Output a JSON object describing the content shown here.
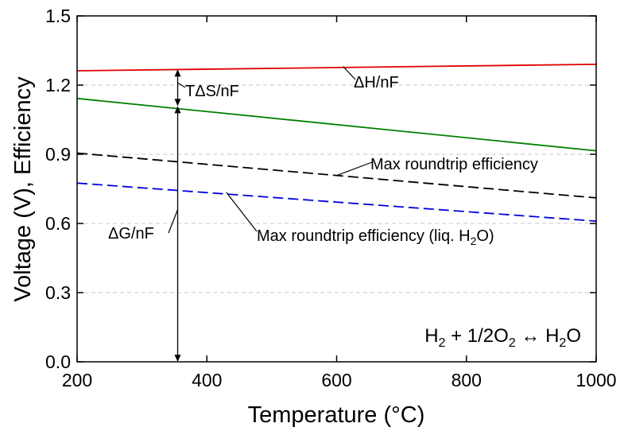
{
  "chart_data": {
    "type": "line",
    "xlabel": "Temperature (°C)",
    "ylabel": "Voltage (V), Efficiency",
    "xlim": [
      200,
      1000
    ],
    "ylim": [
      0,
      1.5
    ],
    "grid": true,
    "x_ticks": [
      "200",
      "400",
      "600",
      "800",
      "1000"
    ],
    "y_ticks": [
      "0.0",
      "0.3",
      "0.6",
      "0.9",
      "1.2",
      "1.5"
    ],
    "series": [
      {
        "name": "ΔH/nF",
        "x": [
          200,
          1000
        ],
        "values": [
          1.262,
          1.29
        ],
        "color": "#e00000",
        "dash": "solid"
      },
      {
        "name": "",
        "x": [
          200,
          1000
        ],
        "values": [
          1.142,
          0.915
        ],
        "color": "#008000",
        "dash": "solid"
      },
      {
        "name": "Max roundtrip efficiency",
        "x": [
          200,
          1000
        ],
        "values": [
          0.905,
          0.711
        ],
        "color": "#000000",
        "dash": "dashed"
      },
      {
        "name": "Max roundtrip efficiency (liq. H2O)",
        "x": [
          200,
          1000
        ],
        "values": [
          0.775,
          0.61
        ],
        "color": "#0000dd",
        "dash": "dashed"
      }
    ],
    "annotations": {
      "tds": "TΔS/nF",
      "dh": "ΔH/nF",
      "dg": "ΔG/nF",
      "max_rt": "Max roundtrip efficiency",
      "max_rt_liq_prefix": "Max roundtrip efficiency (liq. H",
      "max_rt_liq_sub": "2",
      "max_rt_liq_suffix": "O)",
      "arrow_x": 355,
      "arrow_dh_value": 1.268,
      "arrow_dg_value": 1.109,
      "arrow_base": 0.0
    },
    "equation": {
      "h": "H",
      "sub1": "2",
      "mid": " + 1/2O",
      "sub2": "2",
      "arrow": " ↔ ",
      "end": "H",
      "sub3": "2",
      "tail": "O"
    }
  }
}
